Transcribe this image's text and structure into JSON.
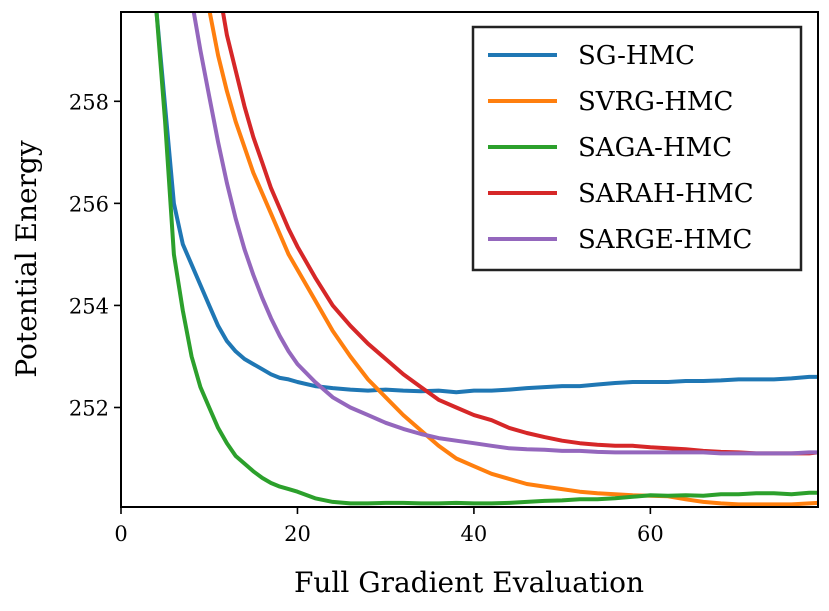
{
  "chart_data": {
    "type": "line",
    "title": "",
    "xlabel": "Full Gradient Evaluation",
    "ylabel": "Potential Energy",
    "xlim": [
      0,
      79
    ],
    "ylim": [
      250.05,
      259.75
    ],
    "xticks": [
      0,
      20,
      40,
      60
    ],
    "yticks": [
      252,
      254,
      256,
      258
    ],
    "legend": "top-right",
    "grid": false,
    "series": [
      {
        "name": "SG-HMC",
        "color": "#1f77b4",
        "x": [
          4,
          5,
          6,
          7,
          8,
          9,
          10,
          11,
          12,
          13,
          14,
          15,
          16,
          17,
          18,
          19,
          20,
          22,
          24,
          26,
          28,
          30,
          32,
          34,
          36,
          38,
          40,
          42,
          44,
          46,
          48,
          50,
          52,
          54,
          56,
          58,
          60,
          62,
          64,
          66,
          68,
          70,
          72,
          74,
          76,
          78,
          79
        ],
        "y": [
          259.8,
          257.9,
          256.0,
          255.2,
          254.8,
          254.4,
          254.0,
          253.6,
          253.3,
          253.1,
          252.95,
          252.85,
          252.75,
          252.65,
          252.58,
          252.55,
          252.5,
          252.42,
          252.38,
          252.35,
          252.33,
          252.35,
          252.33,
          252.32,
          252.33,
          252.3,
          252.33,
          252.33,
          252.35,
          252.38,
          252.4,
          252.42,
          252.42,
          252.45,
          252.48,
          252.5,
          252.5,
          252.5,
          252.52,
          252.52,
          252.53,
          252.55,
          252.55,
          252.55,
          252.57,
          252.6,
          252.6
        ]
      },
      {
        "name": "SVRG-HMC",
        "color": "#ff7f0e",
        "x": [
          10,
          11,
          12,
          13,
          14,
          15,
          16,
          17,
          18,
          19,
          20,
          22,
          24,
          26,
          28,
          30,
          32,
          34,
          36,
          38,
          40,
          42,
          44,
          46,
          48,
          50,
          52,
          54,
          56,
          58,
          60,
          62,
          64,
          66,
          68,
          70,
          72,
          74,
          76,
          78,
          79
        ],
        "y": [
          259.8,
          258.9,
          258.2,
          257.6,
          257.1,
          256.6,
          256.2,
          255.8,
          255.4,
          255.0,
          254.7,
          254.1,
          253.5,
          253.0,
          252.55,
          252.2,
          251.85,
          251.55,
          251.25,
          251.0,
          250.85,
          250.7,
          250.6,
          250.5,
          250.45,
          250.4,
          250.35,
          250.32,
          250.3,
          250.28,
          250.27,
          250.26,
          250.2,
          250.15,
          250.12,
          250.1,
          250.1,
          250.1,
          250.1,
          250.12,
          250.13
        ]
      },
      {
        "name": "SAGA-HMC",
        "color": "#2ca02c",
        "x": [
          4,
          5,
          6,
          7,
          8,
          9,
          10,
          11,
          12,
          13,
          14,
          15,
          16,
          17,
          18,
          19,
          20,
          22,
          24,
          26,
          28,
          30,
          32,
          34,
          36,
          38,
          40,
          42,
          44,
          46,
          48,
          50,
          52,
          54,
          56,
          58,
          60,
          62,
          64,
          66,
          68,
          70,
          72,
          74,
          76,
          78,
          79
        ],
        "y": [
          259.8,
          257.6,
          255.0,
          253.9,
          253.0,
          252.4,
          252.0,
          251.6,
          251.3,
          251.05,
          250.9,
          250.75,
          250.62,
          250.52,
          250.45,
          250.4,
          250.35,
          250.22,
          250.15,
          250.12,
          250.12,
          250.13,
          250.13,
          250.12,
          250.12,
          250.13,
          250.12,
          250.12,
          250.13,
          250.15,
          250.17,
          250.18,
          250.2,
          250.2,
          250.22,
          250.25,
          250.28,
          250.27,
          250.28,
          250.27,
          250.3,
          250.3,
          250.32,
          250.32,
          250.3,
          250.33,
          250.33
        ]
      },
      {
        "name": "SARAH-HMC",
        "color": "#d62728",
        "x": [
          11.5,
          12,
          13,
          14,
          15,
          16,
          17,
          18,
          19,
          20,
          22,
          24,
          26,
          28,
          30,
          32,
          34,
          36,
          38,
          40,
          42,
          44,
          46,
          48,
          50,
          52,
          54,
          56,
          58,
          60,
          62,
          64,
          66,
          68,
          70,
          72,
          74,
          76,
          78,
          79
        ],
        "y": [
          259.8,
          259.3,
          258.6,
          257.9,
          257.3,
          256.8,
          256.3,
          255.9,
          255.5,
          255.15,
          254.55,
          254.0,
          253.6,
          253.25,
          252.95,
          252.65,
          252.4,
          252.15,
          252.0,
          251.85,
          251.75,
          251.6,
          251.5,
          251.42,
          251.35,
          251.3,
          251.27,
          251.25,
          251.25,
          251.22,
          251.2,
          251.18,
          251.15,
          251.13,
          251.12,
          251.1,
          251.1,
          251.1,
          251.1,
          251.12
        ]
      },
      {
        "name": "SARGE-HMC",
        "color": "#9467bd",
        "x": [
          8.2,
          9,
          10,
          11,
          12,
          13,
          14,
          15,
          16,
          17,
          18,
          19,
          20,
          22,
          24,
          26,
          28,
          30,
          32,
          34,
          36,
          38,
          40,
          42,
          44,
          46,
          48,
          50,
          52,
          54,
          56,
          58,
          60,
          62,
          64,
          66,
          68,
          70,
          72,
          74,
          76,
          78,
          79
        ],
        "y": [
          259.8,
          259.0,
          258.1,
          257.2,
          256.4,
          255.7,
          255.1,
          254.6,
          254.15,
          253.75,
          253.4,
          253.1,
          252.85,
          252.5,
          252.2,
          252.0,
          251.85,
          251.7,
          251.58,
          251.48,
          251.4,
          251.35,
          251.3,
          251.25,
          251.2,
          251.18,
          251.17,
          251.15,
          251.15,
          251.13,
          251.12,
          251.12,
          251.12,
          251.12,
          251.12,
          251.12,
          251.1,
          251.1,
          251.1,
          251.1,
          251.1,
          251.12,
          251.12
        ]
      }
    ]
  }
}
